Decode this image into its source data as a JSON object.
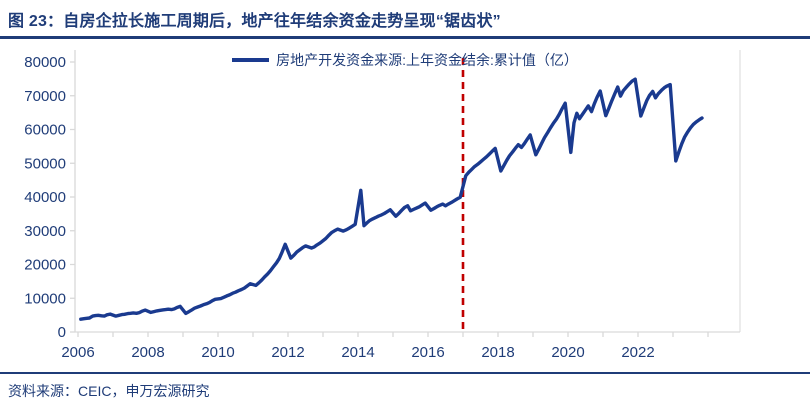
{
  "figure": {
    "title": "图 23：自房企拉长施工周期后，地产往年结余资金走势呈现“锯齿状”",
    "source": "资料来源：CEIC，申万宏源研究"
  },
  "legend": {
    "label": "房地产开发资金来源:上年资金结余:累计值（亿）"
  },
  "colors": {
    "navy_text": "#1F3C78",
    "line": "#1A3A8F",
    "red_dash": "#C00000",
    "axis_gray": "#D9D9D9"
  },
  "chart_data": {
    "type": "line",
    "title": "房地产开发资金来源:上年资金结余:累计值（亿）",
    "xlabel": "",
    "ylabel": "",
    "x_range": [
      2006,
      2024
    ],
    "ylim": [
      0,
      80000
    ],
    "y_ticks": [
      0,
      10000,
      20000,
      30000,
      40000,
      50000,
      60000,
      70000,
      80000
    ],
    "x_ticks_labeled": [
      2006,
      2008,
      2010,
      2012,
      2014,
      2016,
      2018,
      2020,
      2022
    ],
    "x_minor_tick_every_years": 1,
    "grid": false,
    "legend_position": "top-center",
    "annotations": [
      {
        "type": "vline",
        "x": 2017,
        "style": "dashed",
        "color": "#C00000",
        "meaning": "start of sawtooth regime"
      }
    ],
    "series": [
      {
        "name": "房地产开发资金来源:上年资金结余:累计值（亿）",
        "points": [
          [
            2006.08,
            3800
          ],
          [
            2006.17,
            3950
          ],
          [
            2006.25,
            4050
          ],
          [
            2006.33,
            4150
          ],
          [
            2006.42,
            4700
          ],
          [
            2006.5,
            4850
          ],
          [
            2006.58,
            4950
          ],
          [
            2006.67,
            4800
          ],
          [
            2006.75,
            4700
          ],
          [
            2006.83,
            5100
          ],
          [
            2006.92,
            5300
          ],
          [
            2007.08,
            4700
          ],
          [
            2007.17,
            4950
          ],
          [
            2007.25,
            5150
          ],
          [
            2007.33,
            5250
          ],
          [
            2007.42,
            5450
          ],
          [
            2007.5,
            5550
          ],
          [
            2007.58,
            5650
          ],
          [
            2007.67,
            5550
          ],
          [
            2007.75,
            5750
          ],
          [
            2007.83,
            6150
          ],
          [
            2007.92,
            6500
          ],
          [
            2008.08,
            5800
          ],
          [
            2008.17,
            6050
          ],
          [
            2008.25,
            6250
          ],
          [
            2008.33,
            6400
          ],
          [
            2008.42,
            6550
          ],
          [
            2008.5,
            6650
          ],
          [
            2008.58,
            6750
          ],
          [
            2008.67,
            6650
          ],
          [
            2008.75,
            6850
          ],
          [
            2008.83,
            7250
          ],
          [
            2008.92,
            7600
          ],
          [
            2009.08,
            5500
          ],
          [
            2009.17,
            6050
          ],
          [
            2009.25,
            6550
          ],
          [
            2009.33,
            7050
          ],
          [
            2009.42,
            7400
          ],
          [
            2009.5,
            7700
          ],
          [
            2009.58,
            8050
          ],
          [
            2009.67,
            8350
          ],
          [
            2009.75,
            8700
          ],
          [
            2009.83,
            9200
          ],
          [
            2009.92,
            9700
          ],
          [
            2010.08,
            9900
          ],
          [
            2010.17,
            10300
          ],
          [
            2010.25,
            10700
          ],
          [
            2010.33,
            11000
          ],
          [
            2010.42,
            11500
          ],
          [
            2010.5,
            11800
          ],
          [
            2010.58,
            12200
          ],
          [
            2010.67,
            12600
          ],
          [
            2010.75,
            13000
          ],
          [
            2010.83,
            13600
          ],
          [
            2010.92,
            14300
          ],
          [
            2011.08,
            13800
          ],
          [
            2011.17,
            14600
          ],
          [
            2011.25,
            15400
          ],
          [
            2011.33,
            16300
          ],
          [
            2011.42,
            17200
          ],
          [
            2011.5,
            18200
          ],
          [
            2011.58,
            19300
          ],
          [
            2011.67,
            20500
          ],
          [
            2011.75,
            21800
          ],
          [
            2011.83,
            23600
          ],
          [
            2011.92,
            26000
          ],
          [
            2012.08,
            21900
          ],
          [
            2012.17,
            22800
          ],
          [
            2012.25,
            23700
          ],
          [
            2012.33,
            24300
          ],
          [
            2012.42,
            25000
          ],
          [
            2012.5,
            25500
          ],
          [
            2012.58,
            25200
          ],
          [
            2012.67,
            24900
          ],
          [
            2012.75,
            25200
          ],
          [
            2012.83,
            25800
          ],
          [
            2012.92,
            26400
          ],
          [
            2013.08,
            27700
          ],
          [
            2013.17,
            28700
          ],
          [
            2013.25,
            29500
          ],
          [
            2013.33,
            30000
          ],
          [
            2013.42,
            30500
          ],
          [
            2013.5,
            30200
          ],
          [
            2013.58,
            29900
          ],
          [
            2013.67,
            30300
          ],
          [
            2013.75,
            30800
          ],
          [
            2013.83,
            31300
          ],
          [
            2013.92,
            31900
          ],
          [
            2014.08,
            42000
          ],
          [
            2014.17,
            31500
          ],
          [
            2014.25,
            32300
          ],
          [
            2014.33,
            33000
          ],
          [
            2014.42,
            33500
          ],
          [
            2014.5,
            33900
          ],
          [
            2014.58,
            34300
          ],
          [
            2014.67,
            34700
          ],
          [
            2014.75,
            35100
          ],
          [
            2014.83,
            35600
          ],
          [
            2014.92,
            36200
          ],
          [
            2015.08,
            34300
          ],
          [
            2015.17,
            35200
          ],
          [
            2015.25,
            36100
          ],
          [
            2015.33,
            36900
          ],
          [
            2015.42,
            37400
          ],
          [
            2015.5,
            35900
          ],
          [
            2015.58,
            36300
          ],
          [
            2015.67,
            36700
          ],
          [
            2015.75,
            37100
          ],
          [
            2015.83,
            37600
          ],
          [
            2015.92,
            38200
          ],
          [
            2016.08,
            36100
          ],
          [
            2016.17,
            36600
          ],
          [
            2016.25,
            37100
          ],
          [
            2016.33,
            37500
          ],
          [
            2016.42,
            37900
          ],
          [
            2016.5,
            37400
          ],
          [
            2016.58,
            37900
          ],
          [
            2016.67,
            38400
          ],
          [
            2016.75,
            38900
          ],
          [
            2016.83,
            39400
          ],
          [
            2016.92,
            39900
          ],
          [
            2017.08,
            46300
          ],
          [
            2017.17,
            47400
          ],
          [
            2017.25,
            48200
          ],
          [
            2017.33,
            49000
          ],
          [
            2017.42,
            49700
          ],
          [
            2017.5,
            50400
          ],
          [
            2017.58,
            51100
          ],
          [
            2017.67,
            51900
          ],
          [
            2017.75,
            52700
          ],
          [
            2017.83,
            53500
          ],
          [
            2017.92,
            54400
          ],
          [
            2018.08,
            47700
          ],
          [
            2018.17,
            49400
          ],
          [
            2018.25,
            50900
          ],
          [
            2018.33,
            52200
          ],
          [
            2018.42,
            53400
          ],
          [
            2018.5,
            54500
          ],
          [
            2018.58,
            55500
          ],
          [
            2018.67,
            54700
          ],
          [
            2018.75,
            55800
          ],
          [
            2018.83,
            57000
          ],
          [
            2018.92,
            58400
          ],
          [
            2019.08,
            52500
          ],
          [
            2019.17,
            54300
          ],
          [
            2019.25,
            56000
          ],
          [
            2019.33,
            57600
          ],
          [
            2019.42,
            59100
          ],
          [
            2019.5,
            60500
          ],
          [
            2019.58,
            61800
          ],
          [
            2019.67,
            63100
          ],
          [
            2019.75,
            64500
          ],
          [
            2019.83,
            66100
          ],
          [
            2019.92,
            67800
          ],
          [
            2020.08,
            53200
          ],
          [
            2020.17,
            62000
          ],
          [
            2020.25,
            64800
          ],
          [
            2020.33,
            63200
          ],
          [
            2020.42,
            64600
          ],
          [
            2020.5,
            65800
          ],
          [
            2020.58,
            67000
          ],
          [
            2020.67,
            65300
          ],
          [
            2020.75,
            67600
          ],
          [
            2020.83,
            69500
          ],
          [
            2020.92,
            71400
          ],
          [
            2021.08,
            64100
          ],
          [
            2021.17,
            66400
          ],
          [
            2021.25,
            68500
          ],
          [
            2021.33,
            70400
          ],
          [
            2021.42,
            72600
          ],
          [
            2021.5,
            69900
          ],
          [
            2021.58,
            71500
          ],
          [
            2021.67,
            72600
          ],
          [
            2021.75,
            73500
          ],
          [
            2021.83,
            74300
          ],
          [
            2021.92,
            74900
          ],
          [
            2022.08,
            64000
          ],
          [
            2022.17,
            66500
          ],
          [
            2022.25,
            68600
          ],
          [
            2022.33,
            70100
          ],
          [
            2022.42,
            71300
          ],
          [
            2022.5,
            69400
          ],
          [
            2022.58,
            70600
          ],
          [
            2022.67,
            71600
          ],
          [
            2022.75,
            72400
          ],
          [
            2022.83,
            72900
          ],
          [
            2022.92,
            73300
          ],
          [
            2023.08,
            50700
          ],
          [
            2023.17,
            53500
          ],
          [
            2023.25,
            55800
          ],
          [
            2023.33,
            57700
          ],
          [
            2023.42,
            59300
          ],
          [
            2023.5,
            60500
          ],
          [
            2023.58,
            61500
          ],
          [
            2023.67,
            62300
          ],
          [
            2023.75,
            62900
          ],
          [
            2023.83,
            63400
          ]
        ]
      }
    ]
  }
}
